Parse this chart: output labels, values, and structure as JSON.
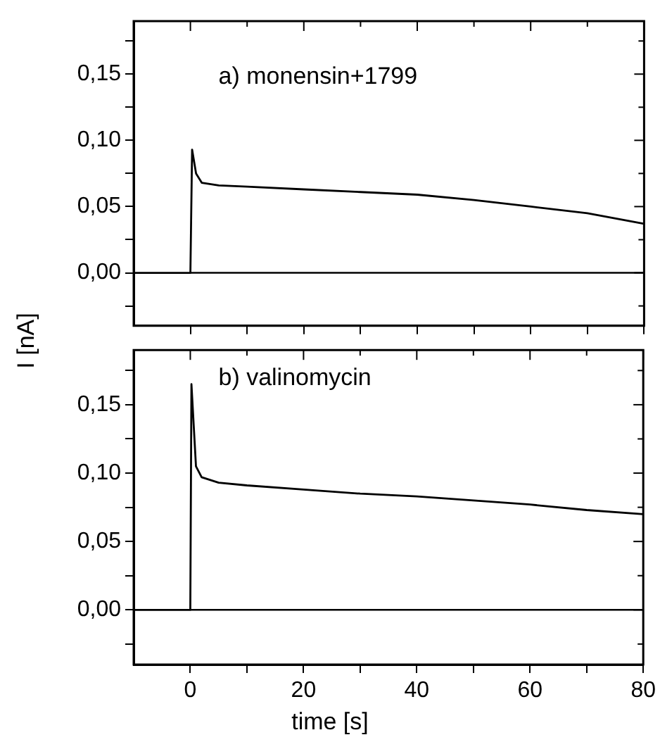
{
  "chart_data": [
    {
      "type": "line",
      "title": "a) monensin+1799",
      "ylabel": "I [nA]",
      "tick_labels": "y",
      "marker": "none",
      "grid": false,
      "legend": false,
      "xlim": [
        -10,
        80
      ],
      "ylim": [
        -0.04,
        0.19
      ],
      "xticks": [
        0,
        {
          "value": 10,
          "label": null
        },
        20,
        {
          "value": 30,
          "label": null
        },
        40,
        {
          "value": 50,
          "label": null
        },
        60,
        {
          "value": 70,
          "label": null
        },
        80
      ],
      "yticks": [
        {
          "value": -0.025,
          "label": null
        },
        {
          "value": 0,
          "label": "0,00"
        },
        {
          "value": 0.025,
          "label": null
        },
        {
          "value": 0.05,
          "label": "0,05"
        },
        {
          "value": 0.075,
          "label": null
        },
        {
          "value": 0.1,
          "label": "0,10"
        },
        {
          "value": 0.125,
          "label": null
        },
        {
          "value": 0.15,
          "label": "0,15"
        },
        {
          "value": 0.175,
          "label": null
        }
      ],
      "ref_lines": [
        {
          "axis": "y",
          "value": 0,
          "color": "#000000"
        }
      ],
      "x": [
        -10,
        -5,
        0,
        0.3,
        1,
        2,
        5,
        10,
        20,
        30,
        40,
        50,
        60,
        70,
        80
      ],
      "series": [
        {
          "color": "#000000",
          "values": [
            0,
            0,
            0,
            0.093,
            0.075,
            0.068,
            0.066,
            0.065,
            0.063,
            0.061,
            0.059,
            0.055,
            0.05,
            0.045,
            0.037
          ]
        }
      ]
    },
    {
      "type": "line",
      "title": "b) valinomycin",
      "xlabel": "time [s]",
      "marker": "none",
      "grid": false,
      "legend": false,
      "xlim": [
        -10,
        80
      ],
      "ylim": [
        -0.04,
        0.19
      ],
      "xticks": [
        0,
        {
          "value": 10,
          "label": null
        },
        20,
        {
          "value": 30,
          "label": null
        },
        40,
        {
          "value": 50,
          "label": null
        },
        60,
        {
          "value": 70,
          "label": null
        },
        80
      ],
      "yticks": [
        {
          "value": -0.025,
          "label": null
        },
        {
          "value": 0,
          "label": "0,00"
        },
        {
          "value": 0.025,
          "label": null
        },
        {
          "value": 0.05,
          "label": "0,05"
        },
        {
          "value": 0.075,
          "label": null
        },
        {
          "value": 0.1,
          "label": "0,10"
        },
        {
          "value": 0.125,
          "label": null
        },
        {
          "value": 0.15,
          "label": "0,15"
        },
        {
          "value": 0.175,
          "label": null
        }
      ],
      "ref_lines": [
        {
          "axis": "y",
          "value": 0,
          "color": "#000000"
        }
      ],
      "x": [
        -10,
        -5,
        0,
        0.2,
        1,
        2,
        5,
        10,
        20,
        30,
        40,
        50,
        60,
        70,
        80
      ],
      "series": [
        {
          "color": "#000000",
          "values": [
            0,
            0,
            0,
            0.165,
            0.105,
            0.097,
            0.093,
            0.091,
            0.088,
            0.085,
            0.083,
            0.08,
            0.077,
            0.073,
            0.07
          ]
        }
      ]
    }
  ]
}
